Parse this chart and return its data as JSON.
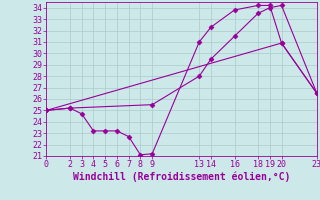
{
  "xlabel": "Windchill (Refroidissement éolien,°C)",
  "ylabel": "",
  "bg_color": "#cce8e8",
  "line_color": "#990099",
  "xlim": [
    0,
    23
  ],
  "ylim": [
    21,
    34.5
  ],
  "xticks": [
    0,
    2,
    3,
    4,
    5,
    6,
    7,
    8,
    9,
    13,
    14,
    16,
    18,
    19,
    20,
    23
  ],
  "yticks": [
    21,
    22,
    23,
    24,
    25,
    26,
    27,
    28,
    29,
    30,
    31,
    32,
    33,
    34
  ],
  "series1_x": [
    0,
    2,
    3,
    4,
    5,
    6,
    7,
    8,
    9,
    13,
    14,
    16,
    18,
    19,
    20,
    23
  ],
  "series1_y": [
    25.0,
    25.2,
    24.7,
    23.2,
    23.2,
    23.2,
    22.7,
    21.1,
    21.2,
    31.0,
    32.3,
    33.8,
    34.2,
    34.2,
    30.9,
    26.5
  ],
  "series2_x": [
    0,
    2,
    9,
    13,
    14,
    16,
    18,
    19,
    20,
    23
  ],
  "series2_y": [
    25.0,
    25.2,
    25.5,
    28.0,
    29.5,
    31.5,
    33.5,
    34.0,
    34.2,
    26.5
  ],
  "series3_x": [
    0,
    20,
    23
  ],
  "series3_y": [
    25.0,
    30.9,
    26.5
  ],
  "grid_color": "#aacccc",
  "marker": "D",
  "marker_size": 2.5,
  "xlabel_fontsize": 7,
  "ytick_fontsize": 6,
  "xtick_fontsize": 6
}
